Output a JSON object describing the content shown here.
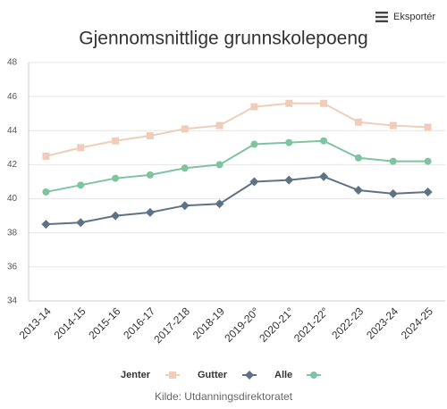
{
  "export_label": "Eksportér",
  "chart_data": {
    "type": "line",
    "title": "Gjennomsnittlige grunnskolepoeng",
    "source": "Kilde: Utdanningsdirektoratet",
    "categories": [
      "2013-14",
      "2014-15",
      "2015-16",
      "2016-17",
      "2017-218",
      "2018-19",
      "2019-20°",
      "2020-21°",
      "2021-22°",
      "2022-23",
      "2023-24",
      "2024-25"
    ],
    "series": [
      {
        "name": "Jenter",
        "color": "#f0cdb9",
        "marker": "square",
        "values": [
          42.5,
          43.0,
          43.4,
          43.7,
          44.1,
          44.3,
          45.4,
          45.6,
          45.6,
          44.5,
          44.3,
          44.2
        ]
      },
      {
        "name": "Gutter",
        "color": "#5d7385",
        "marker": "diamond",
        "values": [
          38.5,
          38.6,
          39.0,
          39.2,
          39.6,
          39.7,
          41.0,
          41.1,
          41.3,
          40.5,
          40.3,
          40.4
        ]
      },
      {
        "name": "Alle",
        "color": "#7ec4a0",
        "marker": "circle",
        "values": [
          40.4,
          40.8,
          41.2,
          41.4,
          41.8,
          42.0,
          43.2,
          43.3,
          43.4,
          42.4,
          42.2,
          42.2
        ]
      }
    ],
    "ylim": [
      34,
      48
    ],
    "yticks": [
      34,
      36,
      38,
      40,
      42,
      44,
      46,
      48
    ],
    "grid": true
  }
}
